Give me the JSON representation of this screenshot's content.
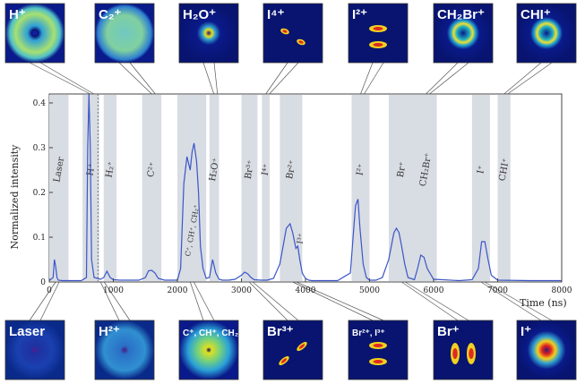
{
  "chart_data": {
    "type": "line",
    "title": "",
    "xlabel": "Time (ns)",
    "ylabel": "Normalized intensity",
    "xlim": [
      0,
      8000
    ],
    "ylim": [
      0,
      0.42
    ],
    "x_ticks": [
      "0",
      "1000",
      "2000",
      "3000",
      "4000",
      "5000",
      "6000",
      "7000",
      "8000"
    ],
    "y_ticks": [
      "0",
      "0.1",
      "0.2",
      "0.3",
      "0.4"
    ],
    "grid": false,
    "line_color": "#3a56c8",
    "band_color": "#d8dce3",
    "series": [
      {
        "x": [
          0,
          60,
          80,
          100,
          120,
          140,
          200,
          500,
          580,
          600,
          620,
          640,
          660,
          700,
          800,
          850,
          900,
          950,
          1000,
          1100,
          1400,
          1500,
          1550,
          1600,
          1650,
          1700,
          1800,
          2000,
          2050,
          2100,
          2150,
          2200,
          2230,
          2260,
          2300,
          2330,
          2360,
          2400,
          2450,
          2500,
          2550,
          2600,
          2650,
          2700,
          2800,
          2900,
          3000,
          3050,
          3100,
          3150,
          3200,
          3300,
          3400,
          3500,
          3600,
          3700,
          3760,
          3800,
          3850,
          3880,
          3910,
          3950,
          4000,
          4050,
          4100,
          4300,
          4500,
          4700,
          4780,
          4820,
          4850,
          4900,
          4950,
          5000,
          5100,
          5200,
          5300,
          5380,
          5420,
          5460,
          5500,
          5550,
          5600,
          5700,
          5750,
          5800,
          5850,
          5900,
          6000,
          6400,
          6600,
          6700,
          6750,
          6800,
          6850,
          6900,
          7000,
          7500,
          8000
        ],
        "y": [
          0.003,
          0.01,
          0.05,
          0.035,
          0.01,
          0.004,
          0.003,
          0.003,
          0.01,
          0.3,
          0.42,
          0.3,
          0.05,
          0.01,
          0.006,
          0.01,
          0.024,
          0.01,
          0.005,
          0.004,
          0.004,
          0.01,
          0.025,
          0.026,
          0.02,
          0.008,
          0.004,
          0.004,
          0.03,
          0.22,
          0.28,
          0.25,
          0.29,
          0.31,
          0.27,
          0.2,
          0.08,
          0.03,
          0.008,
          0.01,
          0.05,
          0.02,
          0.006,
          0.004,
          0.004,
          0.006,
          0.015,
          0.022,
          0.018,
          0.01,
          0.005,
          0.004,
          0.004,
          0.008,
          0.04,
          0.12,
          0.13,
          0.11,
          0.075,
          0.08,
          0.05,
          0.02,
          0.008,
          0.004,
          0.003,
          0.003,
          0.003,
          0.02,
          0.17,
          0.185,
          0.12,
          0.04,
          0.01,
          0.004,
          0.004,
          0.01,
          0.05,
          0.11,
          0.12,
          0.11,
          0.08,
          0.04,
          0.01,
          0.005,
          0.03,
          0.06,
          0.055,
          0.03,
          0.006,
          0.003,
          0.005,
          0.03,
          0.09,
          0.09,
          0.05,
          0.015,
          0.004,
          0.003,
          0.003
        ]
      }
    ],
    "bands": [
      {
        "from": 0,
        "to": 300,
        "label": "Laser"
      },
      {
        "from": 520,
        "to": 780,
        "label": "H⁺"
      },
      {
        "from": 850,
        "to": 1050,
        "label": "H₂⁺"
      },
      {
        "from": 1450,
        "to": 1750,
        "label": "C²⁺"
      },
      {
        "from": 2000,
        "to": 2450,
        "label": "C⁺, CH⁺, CH₂⁺"
      },
      {
        "from": 2500,
        "to": 2650,
        "label": "H₂O⁺"
      },
      {
        "from": 3000,
        "to": 3250,
        "label": "Br³⁺"
      },
      {
        "from": 3320,
        "to": 3440,
        "label": "I⁴⁺"
      },
      {
        "from": 3600,
        "to": 3950,
        "label": "Br²⁺"
      },
      {
        "from": 4720,
        "to": 5000,
        "label": "I²⁺"
      },
      {
        "from": 5300,
        "to": 5700,
        "label": "Br⁺"
      },
      {
        "from": 5700,
        "to": 6050,
        "label": "CH₂Br⁺"
      },
      {
        "from": 6600,
        "to": 6880,
        "label": "I⁺"
      },
      {
        "from": 7000,
        "to": 7200,
        "label": "CHI⁺"
      }
    ],
    "annotations": [
      {
        "x": 3950,
        "y": 0.08,
        "text": "I³⁺"
      }
    ],
    "dashed_marker_x": 760
  },
  "images": {
    "top": [
      {
        "label": "H⁺",
        "anchor_x": 640
      },
      {
        "label": "C₂⁺",
        "anchor_x": 1600
      },
      {
        "label": "H₂O⁺",
        "anchor_x": 2570
      },
      {
        "label": "I⁴⁺",
        "anchor_x": 3380
      },
      {
        "label": "I²⁺",
        "anchor_x": 4860
      },
      {
        "label": "CH₂Br⁺",
        "anchor_x": 5880
      },
      {
        "label": "CHI⁺",
        "anchor_x": 7100
      }
    ],
    "bottom": [
      {
        "label": "Laser",
        "anchor_x": 100
      },
      {
        "label": "H²⁺",
        "anchor_x": 800
      },
      {
        "label": "C⁺, CH⁺, CH₂⁺",
        "anchor_x": 2200
      },
      {
        "label": "Br³⁺",
        "anchor_x": 3120
      },
      {
        "label": "Br²⁺, I³⁺",
        "anchor_x": 3800
      },
      {
        "label": "Br⁺",
        "anchor_x": 5500
      },
      {
        "label": "I⁺",
        "anchor_x": 6740
      }
    ]
  }
}
